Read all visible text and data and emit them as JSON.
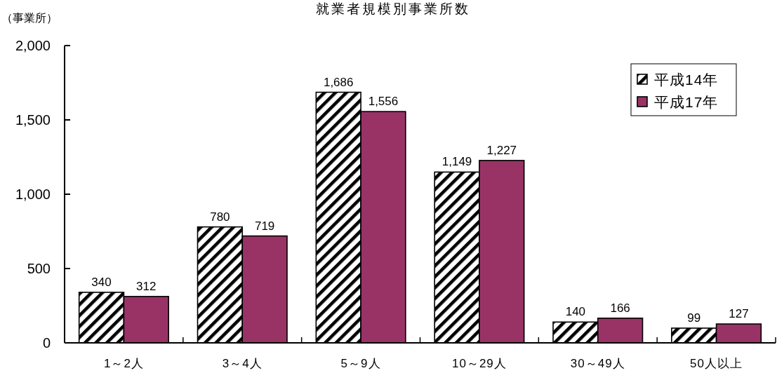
{
  "chart_data": {
    "type": "bar",
    "title": "就業者規模別事業所数",
    "ylabel": "（事業所）",
    "categories": [
      "1～2人",
      "3～4人",
      "5～9人",
      "10～29人",
      "30～49人",
      "50人以上"
    ],
    "series": [
      {
        "name": "平成14年",
        "color": "#000000",
        "values": [
          340,
          780,
          1686,
          1149,
          140,
          99
        ],
        "value_labels": [
          "340",
          "780",
          "1,686",
          "1,149",
          "140",
          "99"
        ]
      },
      {
        "name": "平成17年",
        "color": "#993366",
        "values": [
          312,
          719,
          1556,
          1227,
          166,
          127
        ],
        "value_labels": [
          "312",
          "719",
          "1,556",
          "1,227",
          "166",
          "127"
        ]
      }
    ],
    "ylim": [
      0,
      2000
    ],
    "yticks": [
      0,
      500,
      {
        "value": 1000,
        "label": "1,000"
      },
      {
        "value": 1500,
        "label": "1,500"
      },
      {
        "value": 2000,
        "label": "2,000"
      }
    ],
    "legend": "top right"
  }
}
